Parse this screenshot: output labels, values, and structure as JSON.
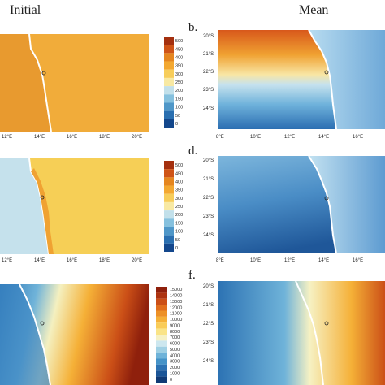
{
  "columns": {
    "initial": "Initial",
    "mean": "Mean"
  },
  "panels": {
    "b": "b.",
    "d": "d.",
    "f": "f."
  },
  "axis": {
    "lon_left": [
      "12°E",
      "14°E",
      "16°E",
      "18°E",
      "20°E"
    ],
    "lon_right": [
      "8°E",
      "10°E",
      "12°E",
      "14°E",
      "16°E"
    ],
    "lat_right": [
      "20°S",
      "21°S",
      "22°S",
      "23°S",
      "24°S"
    ]
  },
  "legends": {
    "top": [
      "500",
      "450",
      "400",
      "350",
      "300",
      "250",
      "200",
      "150",
      "100",
      "50",
      "0"
    ],
    "middle": [
      "500",
      "450",
      "400",
      "350",
      "300",
      "250",
      "200",
      "150",
      "100",
      "50",
      "0"
    ],
    "bottom": [
      "15000",
      "14000",
      "13000",
      "12000",
      "11000",
      "10000",
      "9000",
      "8000",
      "7000",
      "6000",
      "5000",
      "4000",
      "3000",
      "2000",
      "1000",
      "0"
    ]
  },
  "colors": {
    "legend_top": [
      "#a4300f",
      "#cf5417",
      "#e5861f",
      "#f3a831",
      "#f7cd5a",
      "#f8e9a3",
      "#c2e0ea",
      "#86c1de",
      "#4f97c8",
      "#2a6fb0",
      "#13478c"
    ],
    "legend_bottom": [
      "#8f200c",
      "#ad3310",
      "#cb4f17",
      "#e16f1d",
      "#ed9127",
      "#f5b037",
      "#f9cc58",
      "#fae487",
      "#f6f1c3",
      "#cde7ef",
      "#a0d0e4",
      "#6fb3d9",
      "#4593c8",
      "#2c72b3",
      "#1b5597",
      "#103a75"
    ],
    "ocean_initial_top": "#f1ac3a",
    "ocean_initial_mid": "#f6cf56",
    "coast_line": "#ffffff"
  }
}
